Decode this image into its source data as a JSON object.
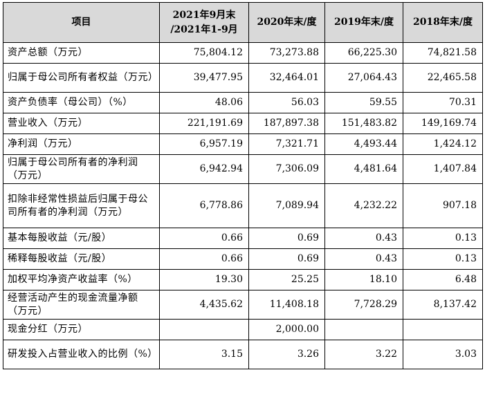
{
  "table": {
    "headers": [
      "项目",
      "2021年9月末\n/2021年1-9月",
      "2020年末/度",
      "2019年末/度",
      "2018年末/度"
    ],
    "rows": [
      {
        "label": "资产总额（万元）",
        "values": [
          "75,804.12",
          "73,273.88",
          "66,225.30",
          "74,821.58"
        ]
      },
      {
        "label": "归属于母公司所有者权益（万元）",
        "values": [
          "39,477.95",
          "32,464.01",
          "27,064.43",
          "22,465.58"
        ]
      },
      {
        "label": "资产负债率（母公司）（%）",
        "values": [
          "48.06",
          "56.03",
          "59.55",
          "70.31"
        ]
      },
      {
        "label": "营业收入（万元）",
        "values": [
          "221,191.69",
          "187,897.38",
          "151,483.82",
          "149,169.74"
        ]
      },
      {
        "label": "净利润（万元）",
        "values": [
          "6,957.19",
          "7,321.71",
          "4,493.44",
          "1,424.12"
        ]
      },
      {
        "label": "归属于母公司所有者的净利润（万元）",
        "values": [
          "6,942.94",
          "7,306.09",
          "4,481.64",
          "1,407.84"
        ]
      },
      {
        "label": "扣除非经常性损益后归属于母公司所有者的净利润（万元）",
        "values": [
          "6,778.86",
          "7,089.94",
          "4,232.22",
          "907.18"
        ]
      },
      {
        "label": "基本每股收益（元/股）",
        "values": [
          "0.66",
          "0.69",
          "0.43",
          "0.13"
        ]
      },
      {
        "label": "稀释每股收益（元/股）",
        "values": [
          "0.66",
          "0.69",
          "0.43",
          "0.13"
        ]
      },
      {
        "label": "加权平均净资产收益率（%）",
        "values": [
          "19.30",
          "25.25",
          "18.10",
          "6.48"
        ]
      },
      {
        "label": "经营活动产生的现金流量净额（万元）",
        "values": [
          "4,435.62",
          "11,408.18",
          "7,728.29",
          "8,137.42"
        ]
      },
      {
        "label": "现金分红（万元）",
        "values": [
          "",
          "2,000.00",
          "",
          ""
        ]
      },
      {
        "label": "研发投入占营业收入的比例（%）",
        "values": [
          "3.15",
          "3.26",
          "3.22",
          "3.03"
        ]
      }
    ]
  }
}
